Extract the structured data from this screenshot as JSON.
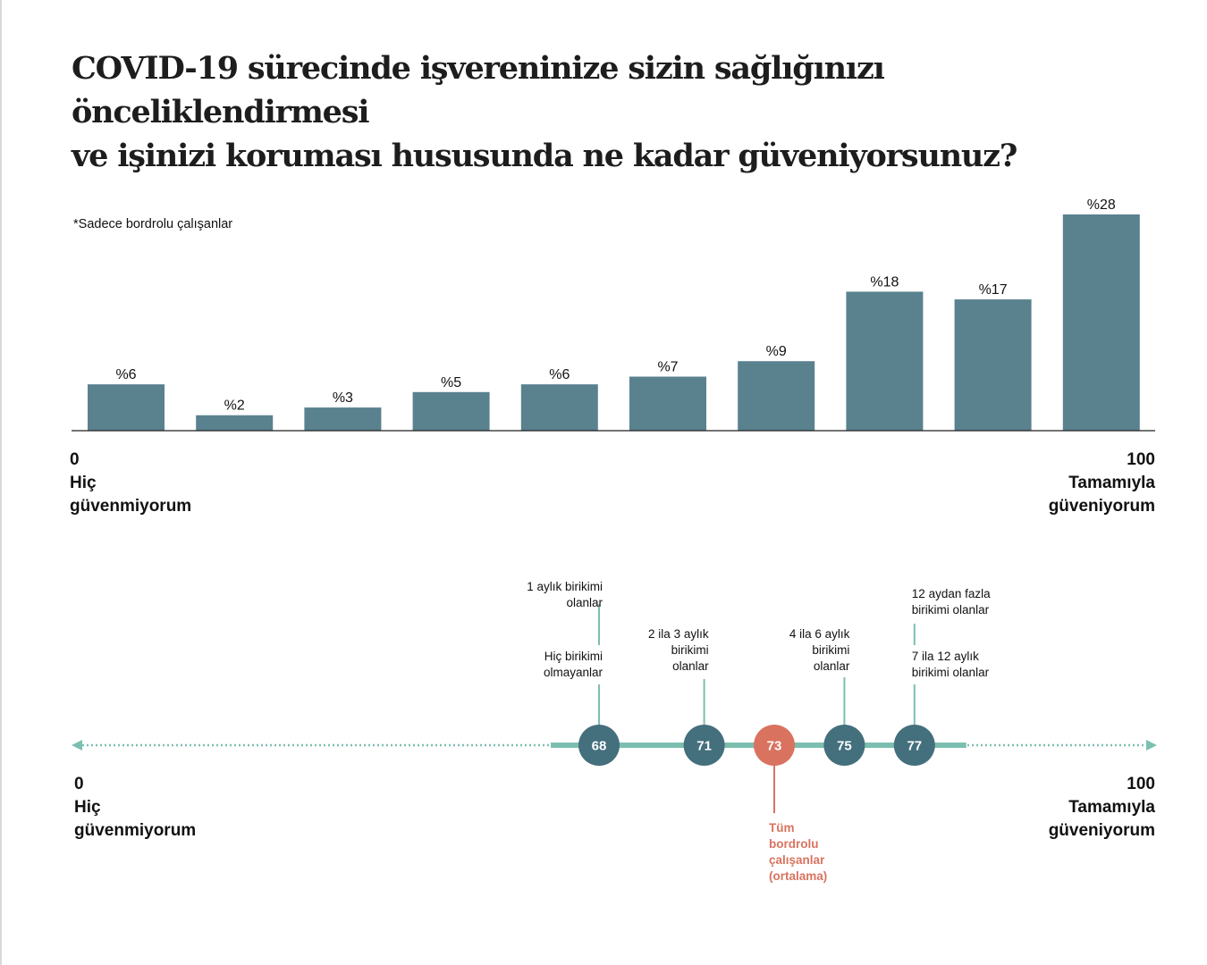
{
  "title": {
    "line1": "COVID-19 sürecinde işvereninize sizin sağlığınızı önceliklendirmesi",
    "line2": "ve işinizi koruması hususunda ne kadar güveniyorsunuz?"
  },
  "note": "*Sadece bordrolu çalışanlar",
  "axis": {
    "min_value": "0",
    "min_line1": "Hiç",
    "min_line2": "güvenmiyorum",
    "max_value": "100",
    "max_line1": "Tamamıyla",
    "max_line2": "güveniyorum"
  },
  "colors": {
    "bar": "#5a818e",
    "circle": "#446f7d",
    "average": "#d9735f",
    "line": "#7cbfb0"
  },
  "chart_data": [
    {
      "type": "bar",
      "title": "COVID-19 sürecinde işvereninize sizin sağlığınızı önceliklendirmesi ve işinizi koruması hususunda ne kadar güveniyorsunuz?",
      "categories": [
        "",
        "",
        "",
        "",
        "",
        "",
        "",
        "",
        "",
        ""
      ],
      "values": [
        6,
        2,
        3,
        5,
        6,
        7,
        9,
        18,
        17,
        28
      ],
      "labels": [
        "%6",
        "%2",
        "%3",
        "%5",
        "%6",
        "%7",
        "%9",
        "%18",
        "%17",
        "%28"
      ],
      "ylim": [
        0,
        30
      ],
      "grid": false
    },
    {
      "type": "scatter",
      "xlim": [
        0,
        100
      ],
      "points": [
        {
          "value": 68,
          "label": "68",
          "group_line1": "Hiç birikimi",
          "group_line2": "olmayanlar",
          "group_line3": ""
        },
        {
          "value": 71,
          "label": "71",
          "group_line1": "2 ila 3 aylık",
          "group_line2": "birikimi",
          "group_line3": "olanlar"
        },
        {
          "value": 75,
          "label": "75",
          "group_line1": "4 ila 6 aylık",
          "group_line2": "birikimi",
          "group_line3": "olanlar"
        },
        {
          "value": 77,
          "label": "77",
          "group_line1": "7 ila 12 aylık",
          "group_line2": "birikimi olanlar",
          "group_line3": ""
        }
      ],
      "upper_groups": [
        {
          "attach_value": 68,
          "line1": "1 aylık birikimi",
          "line2": "olanlar"
        },
        {
          "attach_value": 77,
          "line1": "12 aydan fazla",
          "line2": "birikimi olanlar"
        }
      ],
      "average": {
        "value": 73,
        "label": "73",
        "line1": "Tüm",
        "line2": "bordrolu",
        "line3": "çalışanlar",
        "line4": "(ortalama)"
      }
    }
  ]
}
